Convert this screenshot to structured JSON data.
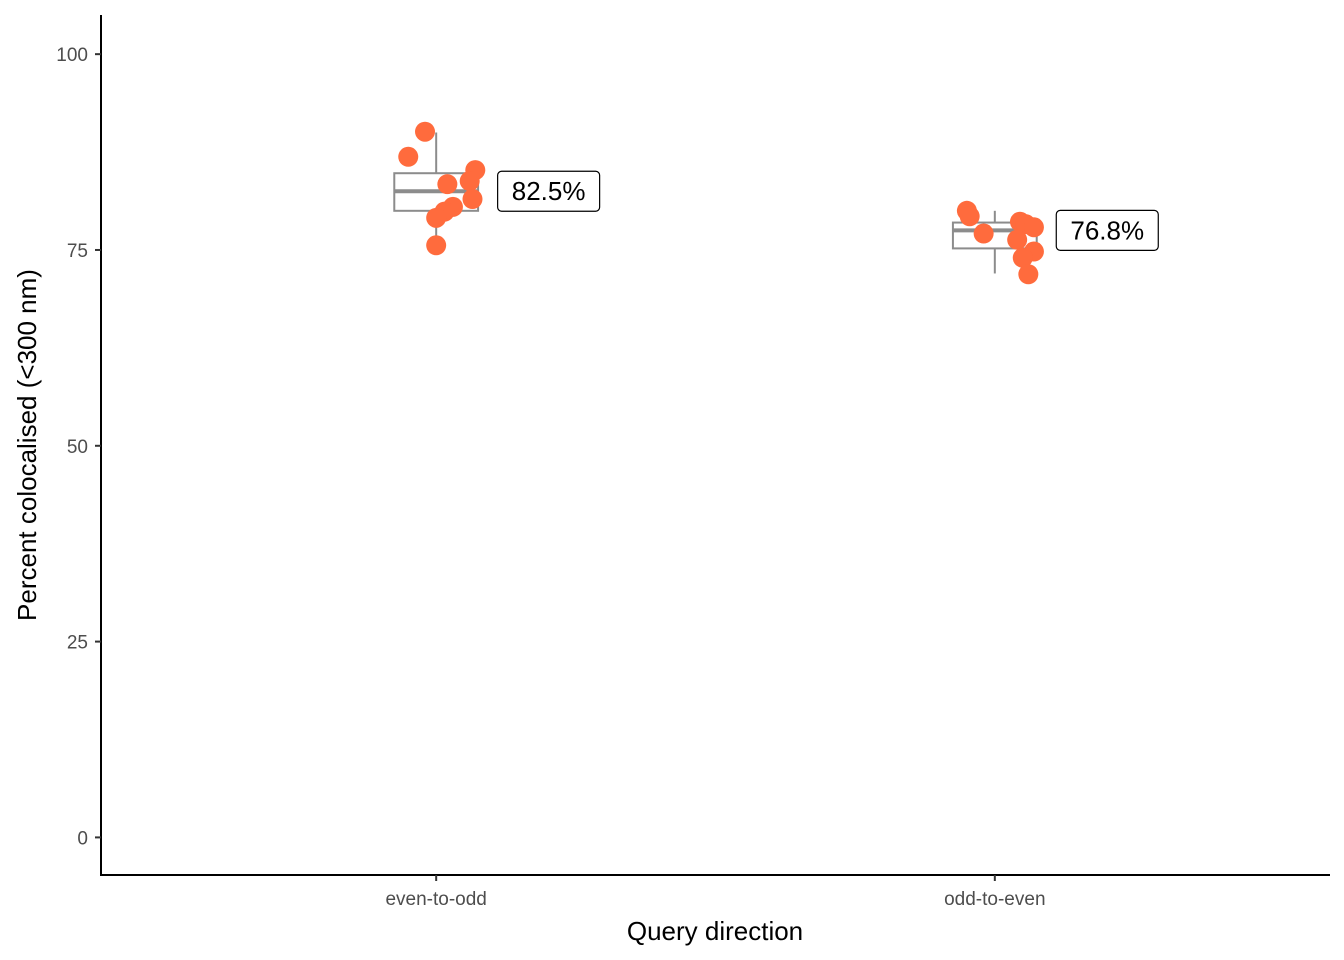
{
  "chart_data": {
    "type": "boxplot-jitter",
    "xlabel": "Query direction",
    "ylabel": "Percent colocalised (<300 nm)",
    "ylim": [
      -4.8,
      105
    ],
    "yticks": [
      0,
      25,
      50,
      75,
      100
    ],
    "categories": [
      "even-to-odd",
      "odd-to-even"
    ],
    "point_color": "#FF6B3D",
    "box_color": "#8c8c8c",
    "groups": [
      {
        "category": "even-to-odd",
        "label": "82.5%",
        "box": {
          "min": 76.7,
          "q1": 80.0,
          "median": 82.5,
          "q3": 84.8,
          "max": 90.0
        },
        "points": [
          {
            "y": 90.1,
            "jitter": -0.02
          },
          {
            "y": 86.9,
            "jitter": -0.05
          },
          {
            "y": 85.2,
            "jitter": 0.07
          },
          {
            "y": 83.8,
            "jitter": 0.06
          },
          {
            "y": 83.4,
            "jitter": 0.02
          },
          {
            "y": 81.5,
            "jitter": 0.065
          },
          {
            "y": 80.5,
            "jitter": 0.03
          },
          {
            "y": 79.9,
            "jitter": 0.015
          },
          {
            "y": 79.1,
            "jitter": 0.0
          },
          {
            "y": 75.6,
            "jitter": 0.0
          }
        ]
      },
      {
        "category": "odd-to-even",
        "label": "76.8%",
        "box": {
          "min": 72.0,
          "q1": 75.2,
          "median": 77.5,
          "q3": 78.5,
          "max": 80.0
        },
        "points": [
          {
            "y": 80.0,
            "jitter": -0.05
          },
          {
            "y": 79.3,
            "jitter": -0.045
          },
          {
            "y": 78.6,
            "jitter": 0.045
          },
          {
            "y": 78.3,
            "jitter": 0.055
          },
          {
            "y": 77.9,
            "jitter": 0.07
          },
          {
            "y": 77.1,
            "jitter": -0.02
          },
          {
            "y": 76.3,
            "jitter": 0.04
          },
          {
            "y": 74.8,
            "jitter": 0.07
          },
          {
            "y": 74.0,
            "jitter": 0.05
          },
          {
            "y": 71.9,
            "jitter": 0.06
          }
        ]
      }
    ]
  }
}
